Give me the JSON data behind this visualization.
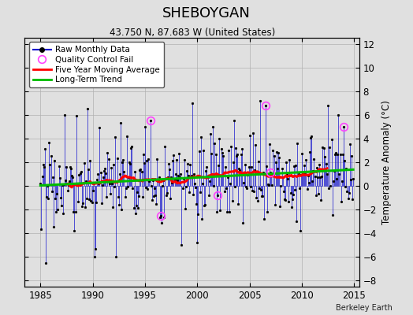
{
  "title": "SHEBOYGAN",
  "subtitle": "43.750 N, 87.683 W (United States)",
  "ylabel": "Temperature Anomaly (°C)",
  "credit": "Berkeley Earth",
  "xlim": [
    1983.5,
    2015.5
  ],
  "ylim": [
    -8.5,
    12.5
  ],
  "yticks": [
    -8,
    -6,
    -4,
    -2,
    0,
    2,
    4,
    6,
    8,
    10,
    12
  ],
  "xticks": [
    1985,
    1990,
    1995,
    2000,
    2005,
    2010,
    2015
  ],
  "line_color": "#0000cc",
  "marker_color": "#000000",
  "moving_avg_color": "#ff0000",
  "trend_color": "#00bb00",
  "qc_fail_color": "#ff44ff",
  "background_color": "#e0e0e0",
  "grid_color": "#b0b0b0",
  "legend_items": [
    "Raw Monthly Data",
    "Quality Control Fail",
    "Five Year Moving Average",
    "Long-Term Trend"
  ]
}
